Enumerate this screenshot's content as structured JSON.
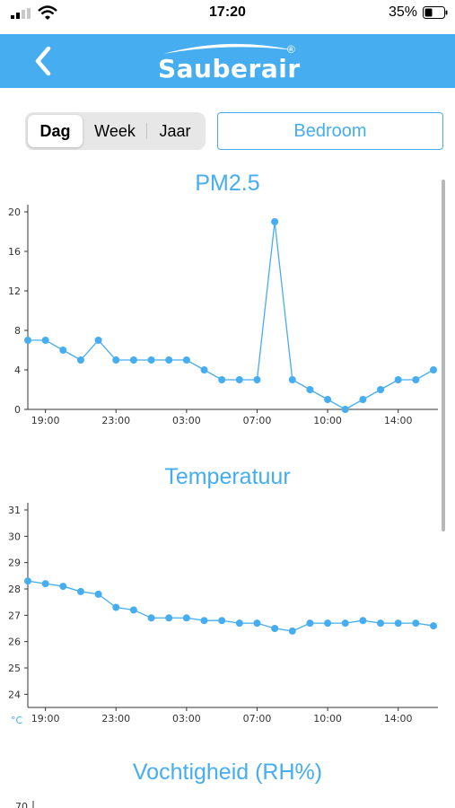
{
  "status_bar": {
    "time": "17:20",
    "battery_percent": "35%"
  },
  "header": {
    "logo_text": "Sauberair",
    "logo_reg": "®"
  },
  "period_tabs": [
    {
      "label": "Dag",
      "selected": true
    },
    {
      "label": "Week",
      "selected": false
    },
    {
      "label": "Jaar",
      "selected": false
    }
  ],
  "room_button": {
    "label": "Bedroom"
  },
  "colors": {
    "accent": "#45adf0",
    "header_bg": "#45adf0"
  },
  "icons": {
    "back": "chevron-left-icon",
    "signal": "signal-icon",
    "wifi": "wifi-icon",
    "battery": "battery-icon"
  },
  "chart_data": [
    {
      "type": "line",
      "title": "PM2.5",
      "x_tick_labels": [
        "19:00",
        "23:00",
        "03:00",
        "07:00",
        "10:00",
        "14:00"
      ],
      "y_ticks": [
        0,
        4,
        8,
        12,
        16,
        20
      ],
      "ylim": [
        0,
        20
      ],
      "unit": "",
      "series": [
        {
          "values": [
            7,
            7,
            6,
            5,
            7,
            5,
            5,
            5,
            5,
            5,
            4,
            3,
            3,
            3,
            19,
            3,
            2,
            1,
            0,
            1,
            2,
            3,
            3,
            4
          ]
        }
      ]
    },
    {
      "type": "line",
      "title": "Temperatuur",
      "x_tick_labels": [
        "19:00",
        "23:00",
        "03:00",
        "07:00",
        "10:00",
        "14:00"
      ],
      "y_ticks": [
        24,
        25,
        26,
        27,
        28,
        29,
        30,
        31
      ],
      "ylim": [
        23.5,
        31
      ],
      "unit": "°C",
      "series": [
        {
          "values": [
            28.3,
            28.2,
            28.1,
            27.9,
            27.8,
            27.3,
            27.2,
            26.9,
            26.9,
            26.9,
            26.8,
            26.8,
            26.7,
            26.7,
            26.5,
            26.4,
            26.7,
            26.7,
            26.7,
            26.8,
            26.7,
            26.7,
            26.7,
            26.6
          ]
        }
      ]
    },
    {
      "type": "line",
      "title": "Vochtigheid (RH%)",
      "y_ticks": [
        70
      ],
      "series": []
    }
  ]
}
